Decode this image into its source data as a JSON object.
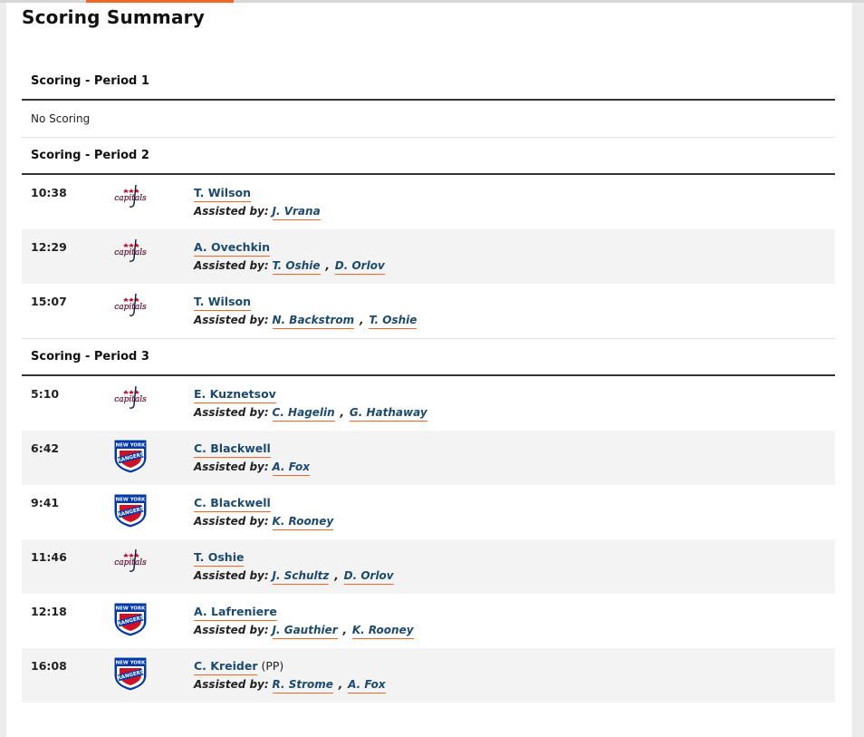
{
  "page": {
    "title": "Scoring Summary"
  },
  "labels": {
    "assisted_by": "Assisted by:",
    "no_scoring": "No Scoring"
  },
  "colors": {
    "accent": "#f26522",
    "link": "#1c4a6e",
    "capitals_red": "#c8102e",
    "capitals_navy": "#041e42",
    "rangers_blue": "#0038a8",
    "rangers_red": "#ce1126"
  },
  "teams": {
    "WSH": {
      "logo_icon": "capitals-logo-icon",
      "logo_text": "capitals"
    },
    "NYR": {
      "logo_icon": "rangers-logo-icon",
      "logo_text_top": "NEW YORK",
      "logo_text_bottom": "RANGERS"
    }
  },
  "periods": [
    {
      "label": "Scoring - Period 1",
      "no_scoring": true,
      "goals": []
    },
    {
      "label": "Scoring - Period 2",
      "no_scoring": false,
      "goals": [
        {
          "time": "10:38",
          "team": "WSH",
          "scorer": "T. Wilson",
          "pp": "",
          "assists": [
            "J. Vrana"
          ]
        },
        {
          "time": "12:29",
          "team": "WSH",
          "scorer": "A. Ovechkin",
          "pp": "",
          "assists": [
            "T. Oshie",
            "D. Orlov"
          ]
        },
        {
          "time": "15:07",
          "team": "WSH",
          "scorer": "T. Wilson",
          "pp": "",
          "assists": [
            "N. Backstrom",
            "T. Oshie"
          ]
        }
      ]
    },
    {
      "label": "Scoring - Period 3",
      "no_scoring": false,
      "goals": [
        {
          "time": "5:10",
          "team": "WSH",
          "scorer": "E. Kuznetsov",
          "pp": "",
          "assists": [
            "C. Hagelin",
            "G. Hathaway"
          ]
        },
        {
          "time": "6:42",
          "team": "NYR",
          "scorer": "C. Blackwell",
          "pp": "",
          "assists": [
            "A. Fox"
          ]
        },
        {
          "time": "9:41",
          "team": "NYR",
          "scorer": "C. Blackwell",
          "pp": "",
          "assists": [
            "K. Rooney"
          ]
        },
        {
          "time": "11:46",
          "team": "WSH",
          "scorer": "T. Oshie",
          "pp": "",
          "assists": [
            "J. Schultz",
            "D. Orlov"
          ]
        },
        {
          "time": "12:18",
          "team": "NYR",
          "scorer": "A. Lafreniere",
          "pp": "",
          "assists": [
            "J. Gauthier",
            "K. Rooney"
          ]
        },
        {
          "time": "16:08",
          "team": "NYR",
          "scorer": "C. Kreider",
          "pp": "(PP)",
          "assists": [
            "R. Strome",
            "A. Fox"
          ]
        }
      ]
    }
  ]
}
